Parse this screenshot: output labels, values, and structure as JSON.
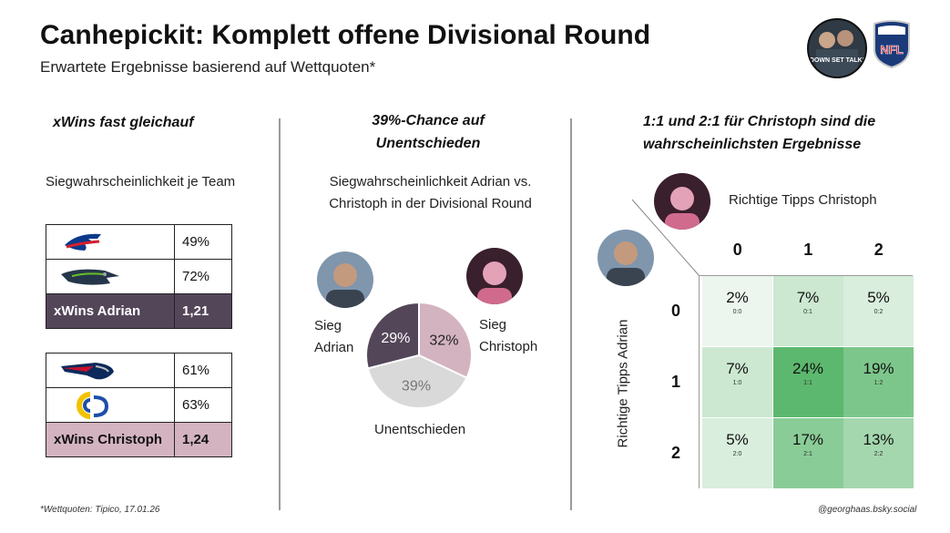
{
  "header": {
    "title": "Canhepickit: Komplett offene Divisional Round",
    "subtitle": "Erwartete Ergebnisse basierend auf Wettquoten*",
    "badge_text": "DOWN SET TALK!",
    "nfl_text": "NFL"
  },
  "left": {
    "heading": "xWins fast gleichauf",
    "label": "Siegwahrscheinlichkeit je Team",
    "adrian_rows": [
      {
        "team_icon": "bills-logo-icon",
        "pct": "49%"
      },
      {
        "team_icon": "seahawks-logo-icon",
        "pct": "72%"
      }
    ],
    "adrian_total": {
      "label": "xWins Adrian",
      "value": "1,21"
    },
    "christoph_rows": [
      {
        "team_icon": "patriots-logo-icon",
        "pct": "61%"
      },
      {
        "team_icon": "rams-logo-icon",
        "pct": "63%"
      }
    ],
    "christoph_total": {
      "label": "xWins Christoph",
      "value": "1,24"
    }
  },
  "middle": {
    "heading_line1": "39%-Chance auf",
    "heading_line2": "Unentschieden",
    "label_line1": "Siegwahrscheinlichkeit Adrian vs.",
    "label_line2": "Christoph in der Divisional Round",
    "adrian_label_line1": "Sieg",
    "adrian_label_line2": "Adrian",
    "christoph_label_line1": "Sieg",
    "christoph_label_line2": "Christoph",
    "draw_label": "Unentschieden"
  },
  "right": {
    "heading_line1": "1:1 und 2:1 für Christoph sind die",
    "heading_line2": "wahrscheinlichsten Ergebnisse",
    "col_axis_label": "Richtige Tipps Christoph",
    "row_axis_label": "Richtige Tipps Adrian"
  },
  "footer": {
    "source": "*Wettquoten: Tipico, 17.01.26",
    "handle": "@georghaas.bsky.social"
  },
  "colors": {
    "adrian": "#544659",
    "christoph": "#d4b3c0",
    "draw": "#d9d9d9",
    "heatmap_low": "#fafcfa",
    "heatmap_high": "#5cb86e"
  },
  "chart_data": [
    {
      "type": "pie",
      "categories": [
        "Sieg Adrian",
        "Sieg Christoph",
        "Unentschieden"
      ],
      "values": [
        29,
        32,
        39
      ],
      "value_labels": [
        "29%",
        "32%",
        "39%"
      ],
      "colors": [
        "#544659",
        "#d4b3c0",
        "#d9d9d9"
      ]
    },
    {
      "type": "heatmap",
      "xlabel": "Richtige Tipps Christoph",
      "ylabel": "Richtige Tipps Adrian",
      "x": [
        "0",
        "1",
        "2"
      ],
      "y": [
        "0",
        "1",
        "2"
      ],
      "values": [
        [
          2,
          7,
          5
        ],
        [
          7,
          24,
          19
        ],
        [
          5,
          17,
          13
        ]
      ],
      "value_labels": [
        [
          "2%",
          "7%",
          "5%"
        ],
        [
          "7%",
          "24%",
          "19%"
        ],
        [
          "5%",
          "17%",
          "13%"
        ]
      ],
      "score_labels": [
        [
          "0:0",
          "0:1",
          "0:2"
        ],
        [
          "1:0",
          "1:1",
          "1:2"
        ],
        [
          "2:0",
          "2:1",
          "2:2"
        ]
      ]
    }
  ]
}
